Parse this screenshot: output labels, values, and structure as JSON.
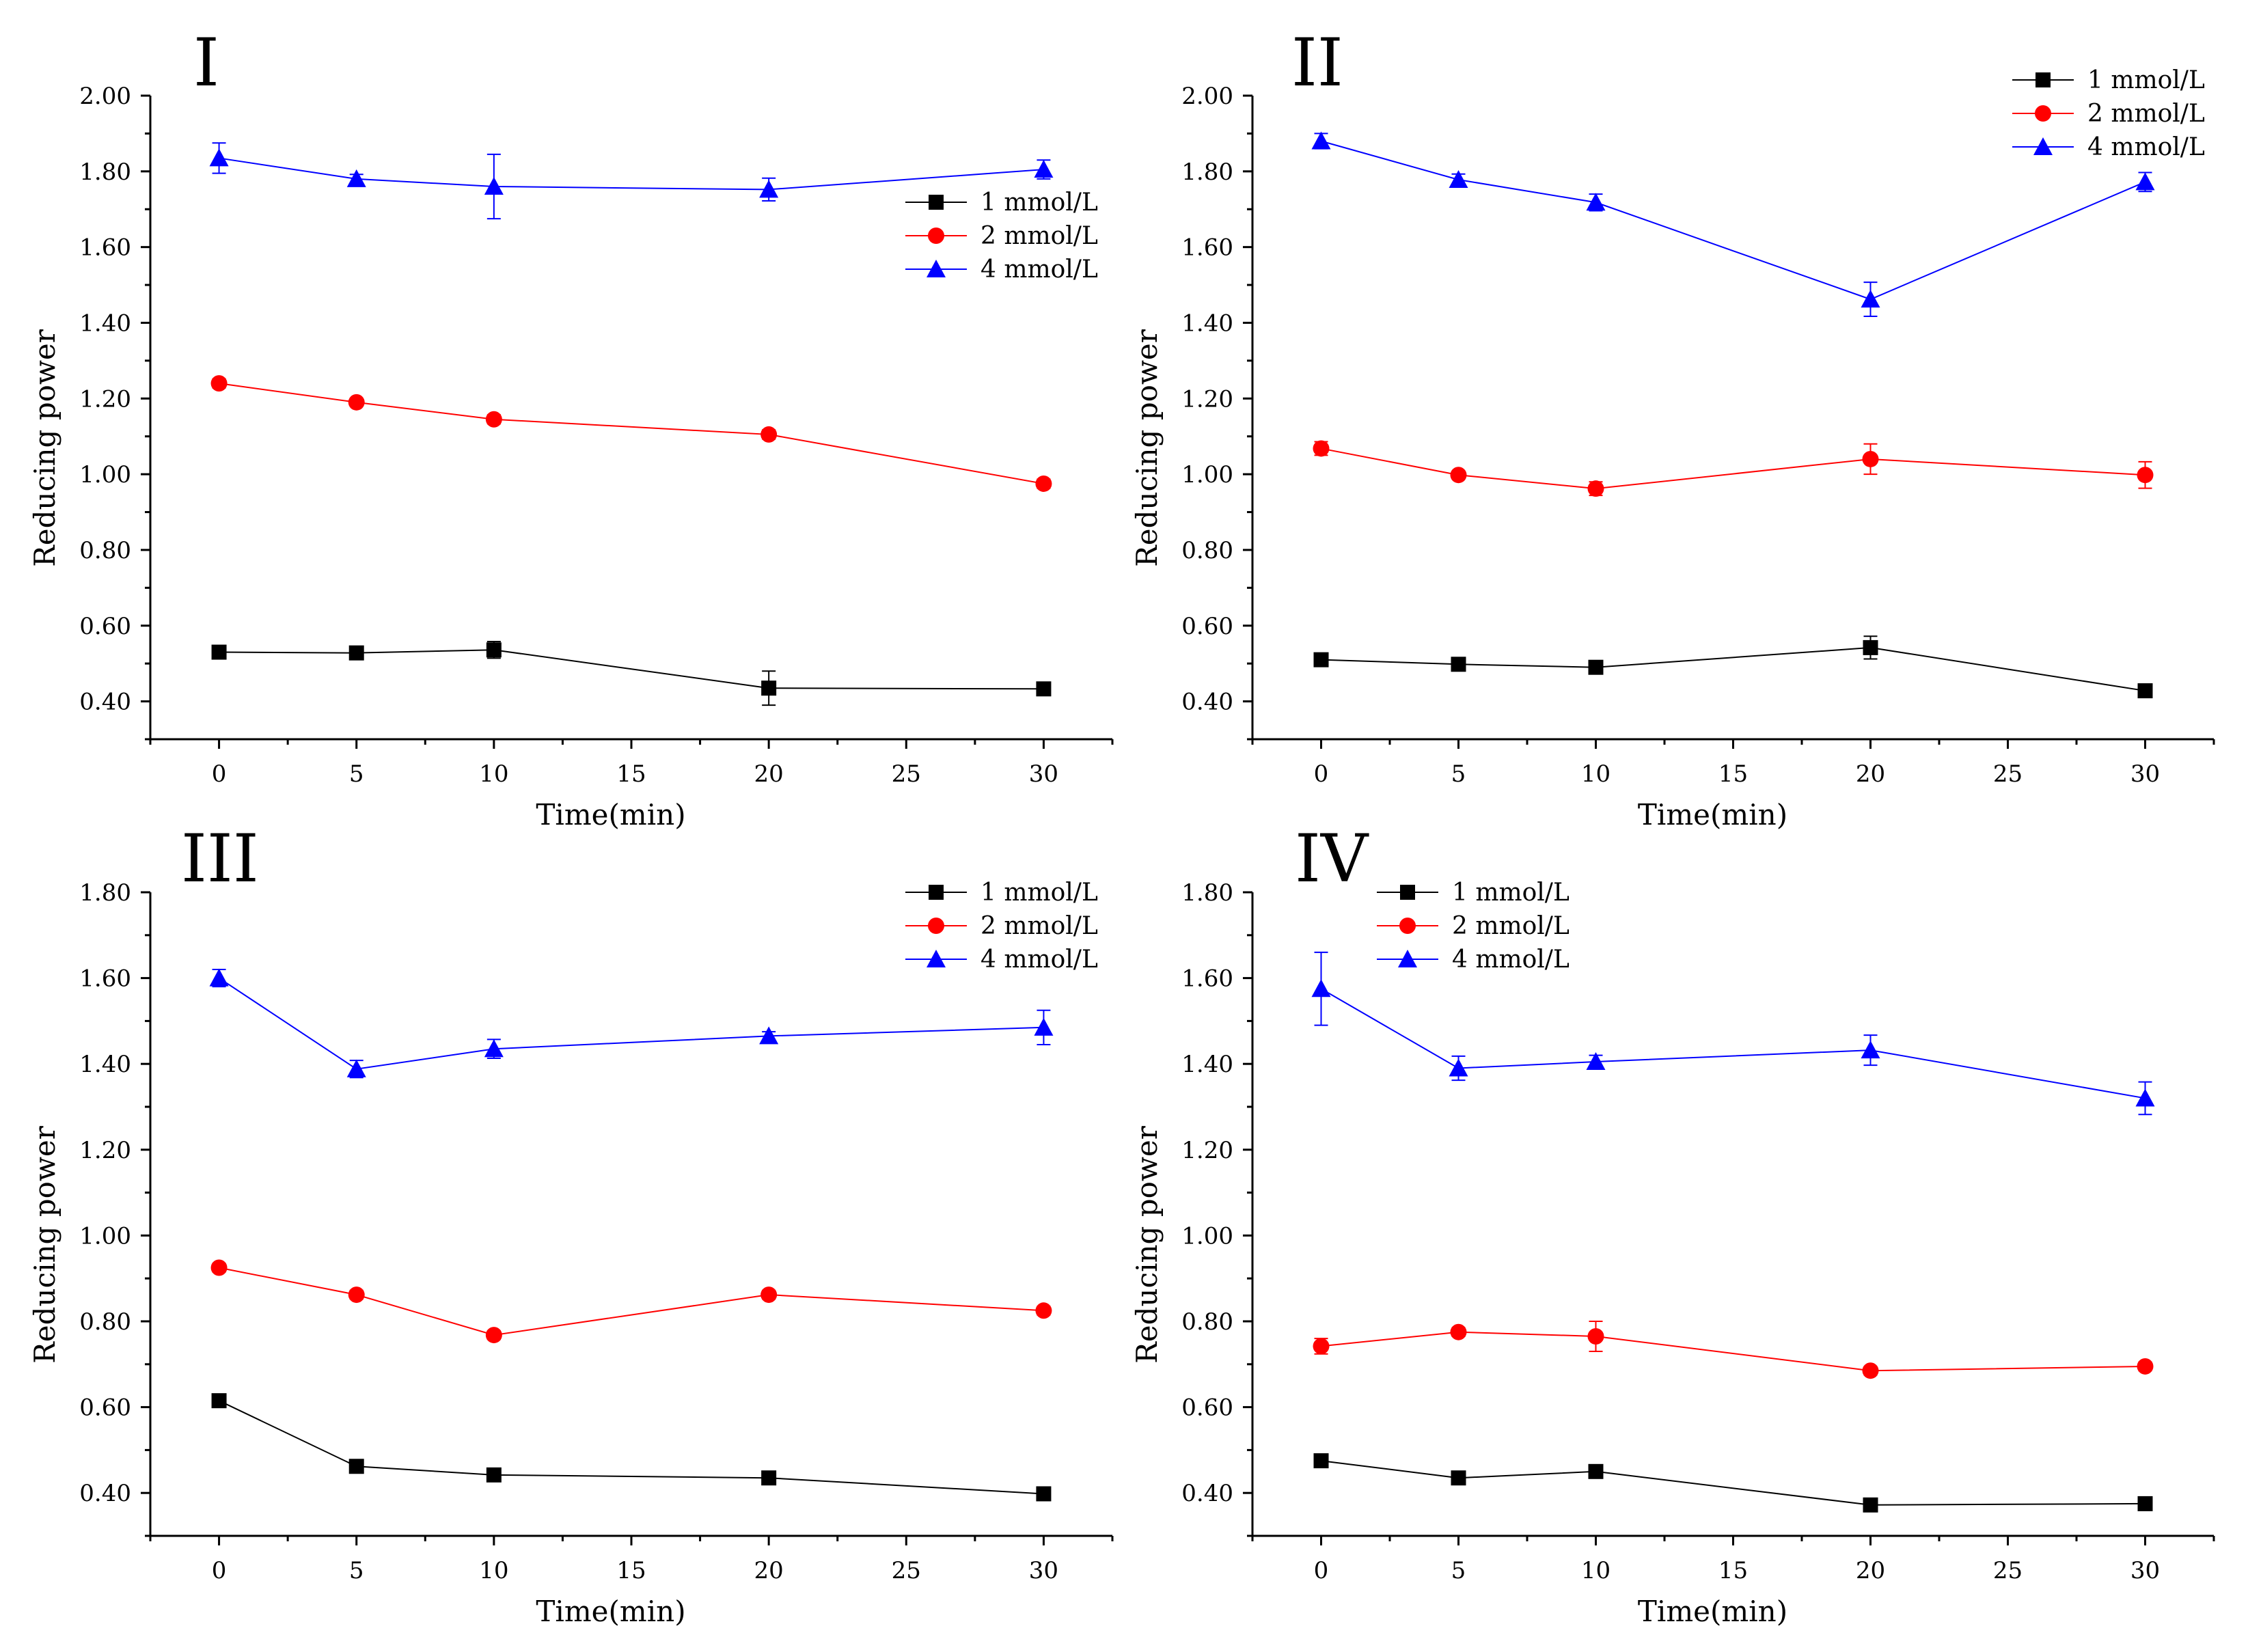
{
  "chart_data": [
    {
      "type": "line",
      "panel_label": "I",
      "xlabel": "Time(min)",
      "ylabel": "Reducing power",
      "xlim": [
        -2.5,
        32.5
      ],
      "xticks": [
        "0",
        "5",
        "10",
        "15",
        "20",
        "25",
        "30"
      ],
      "ylim": [
        0.3,
        2.0
      ],
      "yticks": [
        "0.40",
        "0.60",
        "0.80",
        "1.00",
        "1.20",
        "1.40",
        "1.60",
        "1.80",
        "2.00"
      ],
      "legend_position": "upper-right",
      "x": [
        0,
        5,
        10,
        20,
        30
      ],
      "series": [
        {
          "name": "1 mmol/L",
          "color": "#000000",
          "marker": "square",
          "values": [
            0.53,
            0.528,
            0.536,
            0.435,
            0.433
          ],
          "errors": [
            0.012,
            0.01,
            0.022,
            0.045,
            0.01
          ]
        },
        {
          "name": "2 mmol/L",
          "color": "#ff0000",
          "marker": "circle",
          "values": [
            1.24,
            1.19,
            1.145,
            1.105,
            0.975
          ],
          "errors": [
            0.012,
            0.01,
            0.012,
            0.012,
            0.012
          ]
        },
        {
          "name": "4 mmol/L",
          "color": "#0000ff",
          "marker": "triangle",
          "values": [
            1.835,
            1.78,
            1.76,
            1.752,
            1.805
          ],
          "errors": [
            0.04,
            0.012,
            0.085,
            0.03,
            0.025
          ]
        }
      ]
    },
    {
      "type": "line",
      "panel_label": "II",
      "xlabel": "Time(min)",
      "ylabel": "Reducing power",
      "xlim": [
        -2.5,
        32.5
      ],
      "xticks": [
        "0",
        "5",
        "10",
        "15",
        "20",
        "25",
        "30"
      ],
      "ylim": [
        0.3,
        2.0
      ],
      "yticks": [
        "0.40",
        "0.60",
        "0.80",
        "1.00",
        "1.20",
        "1.40",
        "1.60",
        "1.80",
        "2.00"
      ],
      "legend_position": "top-right",
      "x": [
        0,
        5,
        10,
        20,
        30
      ],
      "series": [
        {
          "name": "1 mmol/L",
          "color": "#000000",
          "marker": "square",
          "values": [
            0.51,
            0.498,
            0.49,
            0.542,
            0.428
          ],
          "errors": [
            0.01,
            0.01,
            0.01,
            0.03,
            0.015
          ]
        },
        {
          "name": "2 mmol/L",
          "color": "#ff0000",
          "marker": "circle",
          "values": [
            1.068,
            0.998,
            0.962,
            1.04,
            0.998
          ],
          "errors": [
            0.018,
            0.01,
            0.018,
            0.04,
            0.035
          ]
        },
        {
          "name": "4 mmol/L",
          "color": "#0000ff",
          "marker": "triangle",
          "values": [
            1.88,
            1.778,
            1.718,
            1.462,
            1.772
          ],
          "errors": [
            0.02,
            0.015,
            0.022,
            0.045,
            0.025
          ]
        }
      ]
    },
    {
      "type": "line",
      "panel_label": "III",
      "xlabel": "Time(min)",
      "ylabel": "Reducing power",
      "xlim": [
        -2.5,
        32.5
      ],
      "xticks": [
        "0",
        "5",
        "10",
        "15",
        "20",
        "25",
        "30"
      ],
      "ylim": [
        0.3,
        1.8
      ],
      "yticks": [
        "0.40",
        "0.60",
        "0.80",
        "1.00",
        "1.20",
        "1.40",
        "1.60",
        "1.80"
      ],
      "legend_position": "top-right",
      "x": [
        0,
        5,
        10,
        20,
        30
      ],
      "series": [
        {
          "name": "1 mmol/L",
          "color": "#000000",
          "marker": "square",
          "values": [
            0.615,
            0.462,
            0.442,
            0.435,
            0.398
          ],
          "errors": [
            0.01,
            0.01,
            0.01,
            0.01,
            0.01
          ]
        },
        {
          "name": "2 mmol/L",
          "color": "#ff0000",
          "marker": "circle",
          "values": [
            0.925,
            0.862,
            0.768,
            0.862,
            0.825
          ],
          "errors": [
            0.01,
            0.01,
            0.01,
            0.01,
            0.01
          ]
        },
        {
          "name": "4 mmol/L",
          "color": "#0000ff",
          "marker": "triangle",
          "values": [
            1.6,
            1.388,
            1.435,
            1.465,
            1.485
          ],
          "errors": [
            0.02,
            0.02,
            0.022,
            0.01,
            0.04
          ]
        }
      ]
    },
    {
      "type": "line",
      "panel_label": "IV",
      "xlabel": "Time(min)",
      "ylabel": "Reducing power",
      "xlim": [
        -2.5,
        32.5
      ],
      "xticks": [
        "0",
        "5",
        "10",
        "15",
        "20",
        "25",
        "30"
      ],
      "ylim": [
        0.3,
        1.8
      ],
      "yticks": [
        "0.40",
        "0.60",
        "0.80",
        "1.00",
        "1.20",
        "1.40",
        "1.60",
        "1.80"
      ],
      "legend_position": "top-left",
      "x": [
        0,
        5,
        10,
        20,
        30
      ],
      "series": [
        {
          "name": "1 mmol/L",
          "color": "#000000",
          "marker": "square",
          "values": [
            0.475,
            0.435,
            0.45,
            0.372,
            0.375
          ],
          "errors": [
            0.01,
            0.01,
            0.01,
            0.01,
            0.01
          ]
        },
        {
          "name": "2 mmol/L",
          "color": "#ff0000",
          "marker": "circle",
          "values": [
            0.742,
            0.775,
            0.765,
            0.685,
            0.695
          ],
          "errors": [
            0.018,
            0.01,
            0.035,
            0.01,
            0.01
          ]
        },
        {
          "name": "4 mmol/L",
          "color": "#0000ff",
          "marker": "triangle",
          "values": [
            1.575,
            1.39,
            1.405,
            1.432,
            1.32
          ],
          "errors": [
            0.085,
            0.028,
            0.015,
            0.035,
            0.038
          ]
        }
      ]
    }
  ]
}
